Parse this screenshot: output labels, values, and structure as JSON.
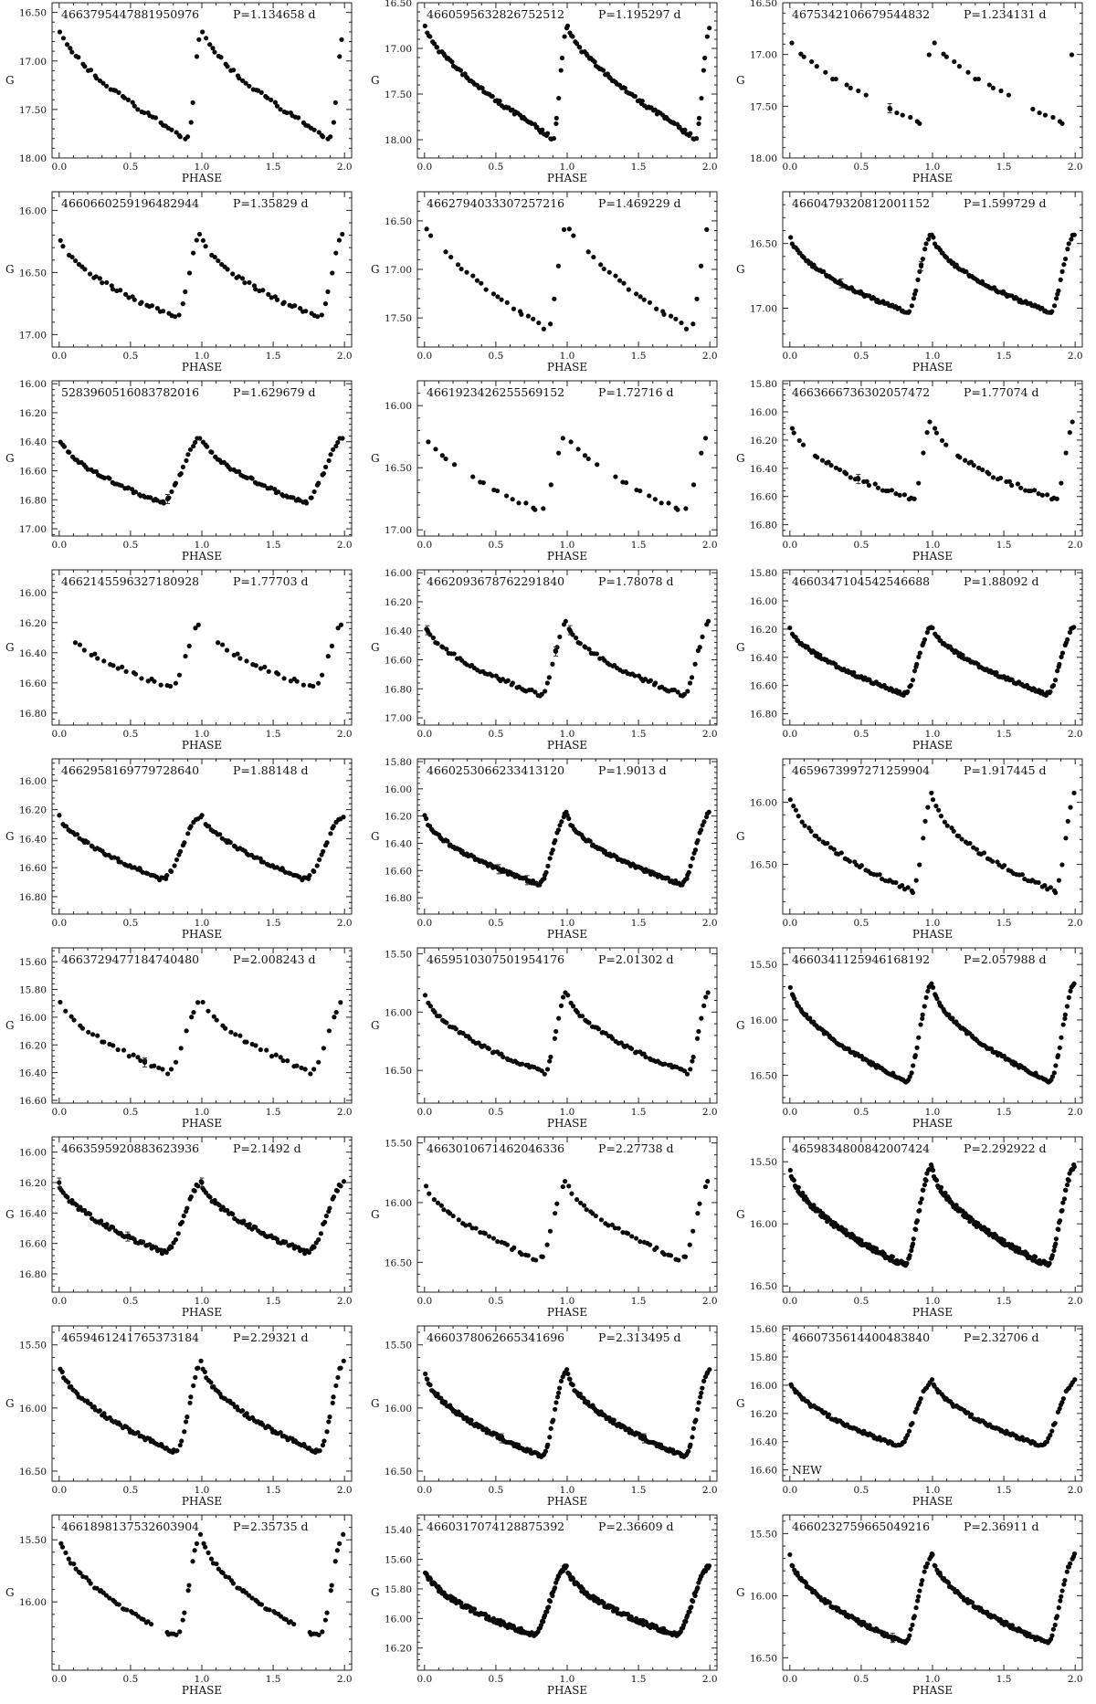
{
  "figure": {
    "xlabel": "PHASE",
    "ylabel": "G",
    "xlim": [
      -0.05,
      2.05
    ],
    "xticks": [
      "0.0",
      "0.5",
      "1.0",
      "1.5",
      "2.0"
    ]
  },
  "chart_data": [
    {
      "type": "scatter",
      "title": "4663795447881950976",
      "period": "P=1.134658  d",
      "ylabel": "G",
      "xlabel": "PHASE",
      "ylim": [
        16.4,
        18.0
      ],
      "yticks": [
        "16.50",
        "17.00",
        "17.50",
        "18.00"
      ],
      "profile": {
        "min": 16.65,
        "max": 17.8,
        "minPhase": 0.0,
        "fall": 0.9,
        "rise": 0.15,
        "pow": 0.65
      },
      "n": 46,
      "noise": 0.025,
      "gap": null,
      "err": []
    },
    {
      "type": "scatter",
      "title": "4660595632826752512",
      "period": "P=1.195297  d",
      "ylabel": "G",
      "xlabel": "PHASE",
      "ylim": [
        16.5,
        18.2
      ],
      "yticks": [
        "16.50",
        "17.00",
        "17.50",
        "18.00"
      ],
      "profile": {
        "min": 16.75,
        "max": 17.98,
        "minPhase": 0.0,
        "fall": 0.9,
        "rise": 0.1,
        "pow": 0.7
      },
      "n": 80,
      "noise": 0.025,
      "gap": null,
      "err": []
    },
    {
      "type": "scatter",
      "title": "4675342106679544832",
      "period": "P=1.234131  d",
      "ylabel": "G",
      "xlabel": "PHASE",
      "ylim": [
        16.5,
        18.0
      ],
      "yticks": [
        "16.50",
        "17.00",
        "17.50",
        "18.00"
      ],
      "profile": {
        "min": 16.85,
        "max": 17.66,
        "minPhase": 0.0,
        "fall": 0.92,
        "rise": 0.08,
        "pow": 0.7
      },
      "n": 22,
      "noise": 0.02,
      "gap": [
        0.55,
        0.65
      ],
      "err": [
        0.7
      ]
    },
    {
      "type": "scatter",
      "title": "4660660259196482944",
      "period": "P=1.35829  d",
      "ylabel": "G",
      "xlabel": "PHASE",
      "ylim": [
        15.85,
        17.1
      ],
      "yticks": [
        "16.00",
        "16.50",
        "17.00"
      ],
      "profile": {
        "min": 16.18,
        "max": 16.86,
        "minPhase": 0.0,
        "fall": 0.82,
        "rise": 0.18,
        "pow": 0.55
      },
      "n": 40,
      "noise": 0.015,
      "gap": null,
      "err": []
    },
    {
      "type": "scatter",
      "title": "4662794033307257216",
      "period": "P=1.469229  d",
      "ylabel": "G",
      "xlabel": "PHASE",
      "ylim": [
        16.2,
        17.8
      ],
      "yticks": [
        "16.50",
        "17.00",
        "17.50"
      ],
      "profile": {
        "min": 16.5,
        "max": 17.62,
        "minPhase": 0.0,
        "fall": 0.86,
        "rise": 0.14,
        "pow": 0.7
      },
      "n": 28,
      "noise": 0.02,
      "gap": [
        0.08,
        0.14
      ],
      "err": []
    },
    {
      "type": "scatter",
      "title": "4660479320812001152",
      "period": "P=1.599729  d",
      "ylabel": "G",
      "xlabel": "PHASE",
      "ylim": [
        16.1,
        17.3
      ],
      "yticks": [
        "16.50",
        "17.00"
      ],
      "profile": {
        "min": 16.42,
        "max": 17.03,
        "minPhase": 0.0,
        "fall": 0.82,
        "rise": 0.18,
        "pow": 0.55
      },
      "n": 85,
      "noise": 0.012,
      "gap": null,
      "err": [
        0.36,
        0.92
      ]
    },
    {
      "type": "scatter",
      "title": "5283960516083782016",
      "period": "P=1.629679  d",
      "ylabel": "G",
      "xlabel": "PHASE",
      "ylim": [
        15.98,
        17.05
      ],
      "yticks": [
        "16.00",
        "16.20",
        "16.40",
        "16.60",
        "16.80",
        "17.00"
      ],
      "profile": {
        "min": 16.37,
        "max": 16.82,
        "minPhase": 0.0,
        "fall": 0.72,
        "rise": 0.28,
        "pow": 0.6
      },
      "n": 60,
      "noise": 0.012,
      "gap": null,
      "err": [
        0.76
      ]
    },
    {
      "type": "scatter",
      "title": "4661923426255569152",
      "period": "P=1.72716  d",
      "ylabel": "G",
      "xlabel": "PHASE",
      "ylim": [
        15.8,
        17.05
      ],
      "yticks": [
        "16.00",
        "16.50",
        "17.00"
      ],
      "profile": {
        "min": 16.2,
        "max": 16.85,
        "minPhase": 0.0,
        "fall": 0.82,
        "rise": 0.18,
        "pow": 0.6
      },
      "n": 22,
      "noise": 0.015,
      "gap": [
        0.22,
        0.3
      ],
      "err": []
    },
    {
      "type": "scatter",
      "title": "4663666736302057472",
      "period": "P=1.77074  d",
      "ylabel": "G",
      "xlabel": "PHASE",
      "ylim": [
        15.78,
        16.88
      ],
      "yticks": [
        "15.80",
        "16.00",
        "16.20",
        "16.40",
        "16.60",
        "16.80"
      ],
      "profile": {
        "min": 16.05,
        "max": 16.62,
        "minPhase": 0.0,
        "fall": 0.86,
        "rise": 0.14,
        "pow": 0.5
      },
      "n": 38,
      "noise": 0.015,
      "gap": [
        0.1,
        0.16
      ],
      "err": [
        0.48
      ]
    },
    {
      "type": "scatter",
      "title": "4662145596327180928",
      "period": "P=1.77703  d",
      "ylabel": "G",
      "xlabel": "PHASE",
      "ylim": [
        15.85,
        16.88
      ],
      "yticks": [
        "16.00",
        "16.20",
        "16.40",
        "16.60",
        "16.80"
      ],
      "profile": {
        "min": 16.2,
        "max": 16.63,
        "minPhase": 0.0,
        "fall": 0.78,
        "rise": 0.22,
        "pow": 0.6
      },
      "n": 30,
      "noise": 0.012,
      "gap": [
        0.0,
        0.08
      ],
      "err": []
    },
    {
      "type": "scatter",
      "title": "4662093678762291840",
      "period": "P=1.78078  d",
      "ylabel": "G",
      "xlabel": "PHASE",
      "ylim": [
        15.98,
        17.05
      ],
      "yticks": [
        "16.00",
        "16.20",
        "16.40",
        "16.60",
        "16.80",
        "17.00"
      ],
      "profile": {
        "min": 16.33,
        "max": 16.84,
        "minPhase": 0.0,
        "fall": 0.82,
        "rise": 0.18,
        "pow": 0.55
      },
      "n": 55,
      "noise": 0.015,
      "gap": null,
      "err": [
        0.02,
        0.92,
        1.02
      ]
    },
    {
      "type": "scatter",
      "title": "4660347104542546688",
      "period": "P=1.88092  d",
      "ylabel": "G",
      "xlabel": "PHASE",
      "ylim": [
        15.78,
        16.88
      ],
      "yticks": [
        "15.80",
        "16.00",
        "16.20",
        "16.40",
        "16.60",
        "16.80"
      ],
      "profile": {
        "min": 16.18,
        "max": 16.66,
        "minPhase": 0.0,
        "fall": 0.8,
        "rise": 0.2,
        "pow": 0.6
      },
      "n": 90,
      "noise": 0.012,
      "gap": null,
      "err": []
    },
    {
      "type": "scatter",
      "title": "4662958169779728640",
      "period": "P=1.88148  d",
      "ylabel": "G",
      "xlabel": "PHASE",
      "ylim": [
        15.85,
        16.92
      ],
      "yticks": [
        "16.00",
        "16.20",
        "16.40",
        "16.60",
        "16.80"
      ],
      "profile": {
        "min": 16.24,
        "max": 16.68,
        "minPhase": 0.0,
        "fall": 0.72,
        "rise": 0.28,
        "pow": 0.65
      },
      "n": 65,
      "noise": 0.012,
      "gap": null,
      "err": []
    },
    {
      "type": "scatter",
      "title": "4660253066233413120",
      "period": "P=1.9013  d",
      "ylabel": "G",
      "xlabel": "PHASE",
      "ylim": [
        15.78,
        16.92
      ],
      "yticks": [
        "15.80",
        "16.00",
        "16.20",
        "16.40",
        "16.60",
        "16.80"
      ],
      "profile": {
        "min": 16.18,
        "max": 16.7,
        "minPhase": 0.0,
        "fall": 0.8,
        "rise": 0.2,
        "pow": 0.55
      },
      "n": 95,
      "noise": 0.012,
      "gap": null,
      "err": [
        0.52,
        0.72
      ]
    },
    {
      "type": "scatter",
      "title": "4659673997271259904",
      "period": "P=1.917445  d",
      "ylabel": "G",
      "xlabel": "PHASE",
      "ylim": [
        15.65,
        16.9
      ],
      "yticks": [
        "16.00",
        "16.50"
      ],
      "profile": {
        "min": 15.93,
        "max": 16.72,
        "minPhase": 0.0,
        "fall": 0.86,
        "rise": 0.14,
        "pow": 0.55
      },
      "n": 50,
      "noise": 0.02,
      "gap": null,
      "err": []
    },
    {
      "type": "scatter",
      "title": "4663729477184740480",
      "period": "P=2.008243  d",
      "ylabel": "G",
      "xlabel": "PHASE",
      "ylim": [
        15.5,
        16.62
      ],
      "yticks": [
        "15.60",
        "15.80",
        "16.00",
        "16.20",
        "16.40",
        "16.60"
      ],
      "profile": {
        "min": 15.88,
        "max": 16.4,
        "minPhase": 0.0,
        "fall": 0.76,
        "rise": 0.24,
        "pow": 0.65
      },
      "n": 32,
      "noise": 0.015,
      "gap": null,
      "err": [
        0.6
      ]
    },
    {
      "type": "scatter",
      "title": "4659510307501954176",
      "period": "P=2.01302  d",
      "ylabel": "G",
      "xlabel": "PHASE",
      "ylim": [
        15.45,
        16.78
      ],
      "yticks": [
        "15.50",
        "16.00",
        "16.50"
      ],
      "profile": {
        "min": 15.82,
        "max": 16.52,
        "minPhase": 0.0,
        "fall": 0.84,
        "rise": 0.16,
        "pow": 0.55
      },
      "n": 60,
      "noise": 0.015,
      "gap": null,
      "err": []
    },
    {
      "type": "scatter",
      "title": "4660341125946168192",
      "period": "P=2.057988  d",
      "ylabel": "G",
      "xlabel": "PHASE",
      "ylim": [
        15.35,
        16.75
      ],
      "yticks": [
        "15.50",
        "16.00",
        "16.50"
      ],
      "profile": {
        "min": 15.66,
        "max": 16.55,
        "minPhase": 0.0,
        "fall": 0.82,
        "rise": 0.18,
        "pow": 0.55
      },
      "n": 100,
      "noise": 0.015,
      "gap": null,
      "err": []
    },
    {
      "type": "scatter",
      "title": "4663595920883623936",
      "period": "P=2.1492  d",
      "ylabel": "G",
      "xlabel": "PHASE",
      "ylim": [
        15.9,
        16.92
      ],
      "yticks": [
        "16.00",
        "16.20",
        "16.40",
        "16.60",
        "16.80"
      ],
      "profile": {
        "min": 16.2,
        "max": 16.66,
        "minPhase": 0.0,
        "fall": 0.74,
        "rise": 0.26,
        "pow": 0.6
      },
      "n": 75,
      "noise": 0.015,
      "gap": null,
      "err": [
        0.0,
        1.0,
        0.48
      ]
    },
    {
      "type": "scatter",
      "title": "4663010671462046336",
      "period": "P=2.27738  d",
      "ylabel": "G",
      "xlabel": "PHASE",
      "ylim": [
        15.45,
        16.75
      ],
      "yticks": [
        "15.50",
        "16.00",
        "16.50"
      ],
      "profile": {
        "min": 15.82,
        "max": 16.48,
        "minPhase": 0.0,
        "fall": 0.8,
        "rise": 0.2,
        "pow": 0.6
      },
      "n": 40,
      "noise": 0.015,
      "gap": null,
      "err": []
    },
    {
      "type": "scatter",
      "title": "4659834800842007424",
      "period": "P=2.292922  d",
      "ylabel": "G",
      "xlabel": "PHASE",
      "ylim": [
        15.3,
        16.55
      ],
      "yticks": [
        "15.50",
        "16.00",
        "16.50"
      ],
      "profile": {
        "min": 15.53,
        "max": 16.33,
        "minPhase": 0.0,
        "fall": 0.8,
        "rise": 0.2,
        "pow": 0.55
      },
      "n": 150,
      "noise": 0.02,
      "gap": null,
      "err": []
    },
    {
      "type": "scatter",
      "title": "4659461241765373184",
      "period": "P=2.29321  d",
      "ylabel": "G",
      "xlabel": "PHASE",
      "ylim": [
        15.35,
        16.58
      ],
      "yticks": [
        "15.50",
        "16.00",
        "16.50"
      ],
      "profile": {
        "min": 15.63,
        "max": 16.35,
        "minPhase": 0.0,
        "fall": 0.82,
        "rise": 0.18,
        "pow": 0.55
      },
      "n": 75,
      "noise": 0.015,
      "gap": null,
      "err": []
    },
    {
      "type": "scatter",
      "title": "4660378062665341696",
      "period": "P=2.313495  d",
      "ylabel": "G",
      "xlabel": "PHASE",
      "ylim": [
        15.35,
        16.58
      ],
      "yticks": [
        "15.50",
        "16.00",
        "16.50"
      ],
      "profile": {
        "min": 15.7,
        "max": 16.38,
        "minPhase": 0.0,
        "fall": 0.82,
        "rise": 0.18,
        "pow": 0.55
      },
      "n": 110,
      "noise": 0.015,
      "gap": null,
      "err": [
        0.54,
        1.54
      ]
    },
    {
      "type": "scatter",
      "title": "4660735614400483840",
      "period": "P=2.32706  d",
      "ylabel": "G",
      "xlabel": "PHASE",
      "ylim": [
        15.58,
        16.68
      ],
      "yticks": [
        "15.60",
        "15.80",
        "16.00",
        "16.20",
        "16.40",
        "16.60"
      ],
      "profile": {
        "min": 15.97,
        "max": 16.43,
        "minPhase": 0.0,
        "fall": 0.76,
        "rise": 0.24,
        "pow": 0.6
      },
      "n": 85,
      "noise": 0.012,
      "gap": null,
      "err": [],
      "note": "NEW"
    },
    {
      "type": "scatter",
      "title": "4661898137532603904",
      "period": "P=2.35735  d",
      "ylabel": "G",
      "xlabel": "PHASE",
      "ylim": [
        15.3,
        16.55
      ],
      "yticks": [
        "15.50",
        "16.00"
      ],
      "profile": {
        "min": 15.44,
        "max": 16.28,
        "minPhase": 0.0,
        "fall": 0.82,
        "rise": 0.18,
        "pow": 0.55
      },
      "n": 55,
      "noise": 0.015,
      "gap": [
        0.65,
        0.75
      ],
      "err": []
    },
    {
      "type": "scatter",
      "title": "4660317074128875392",
      "period": "P=2.36609  d",
      "ylabel": "G",
      "xlabel": "PHASE",
      "ylim": [
        15.3,
        16.35
      ],
      "yticks": [
        "15.40",
        "15.60",
        "15.80",
        "16.00",
        "16.20"
      ],
      "profile": {
        "min": 15.65,
        "max": 16.11,
        "minPhase": 0.0,
        "fall": 0.76,
        "rise": 0.24,
        "pow": 0.55
      },
      "n": 150,
      "noise": 0.015,
      "gap": null,
      "err": []
    },
    {
      "type": "scatter",
      "title": "4660232759665049216",
      "period": "P=2.36911  d",
      "ylabel": "G",
      "xlabel": "PHASE",
      "ylim": [
        15.35,
        16.6
      ],
      "yticks": [
        "15.50",
        "16.00",
        "16.50"
      ],
      "profile": {
        "min": 15.67,
        "max": 16.38,
        "minPhase": 0.0,
        "fall": 0.8,
        "rise": 0.2,
        "pow": 0.55
      },
      "n": 110,
      "noise": 0.015,
      "gap": null,
      "err": [
        0.72
      ]
    }
  ]
}
